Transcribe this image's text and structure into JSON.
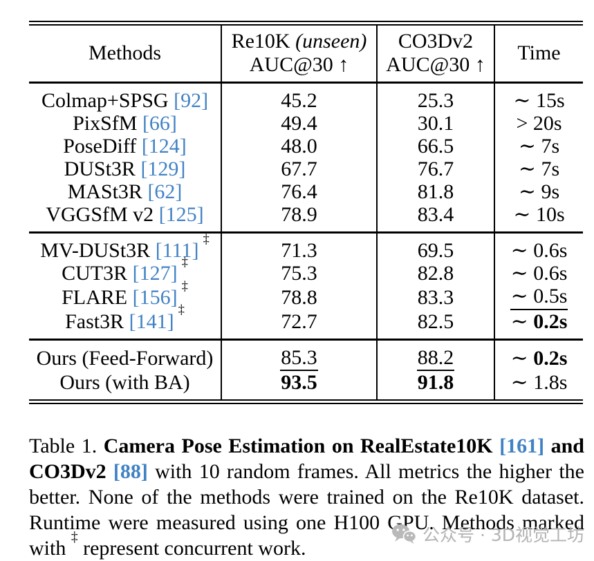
{
  "colors": {
    "citation_blue": "#4182C4",
    "watermark_gray": "#b3b3b3",
    "rule_black": "#000000"
  },
  "table": {
    "concurrent_marker": "‡",
    "header": {
      "methods": "Methods",
      "re10k_line1": "Re10K",
      "re10k_line1_italic": "(unseen)",
      "re10k_line2": "AUC@30 ↑",
      "co3d_line1": "CO3Dv2",
      "co3d_line2": "AUC@30 ↑",
      "time": "Time"
    },
    "groups": [
      {
        "rows": [
          {
            "method": "Colmap+SPSG",
            "cite": "[92]",
            "concurrent": false,
            "re10k": "45.2",
            "re10k_style": "",
            "co3d": "25.3",
            "co3d_style": "",
            "time_rel": "∼",
            "time_val": "15s",
            "time_style": ""
          },
          {
            "method": "PixSfM",
            "cite": "[66]",
            "concurrent": false,
            "re10k": "49.4",
            "re10k_style": "",
            "co3d": "30.1",
            "co3d_style": "",
            "time_rel": ">",
            "time_val": "20s",
            "time_style": ""
          },
          {
            "method": "PoseDiff",
            "cite": "[124]",
            "concurrent": false,
            "re10k": "48.0",
            "re10k_style": "",
            "co3d": "66.5",
            "co3d_style": "",
            "time_rel": "∼",
            "time_val": "7s",
            "time_style": ""
          },
          {
            "method": "DUSt3R",
            "cite": "[129]",
            "concurrent": false,
            "re10k": "67.7",
            "re10k_style": "",
            "co3d": "76.7",
            "co3d_style": "",
            "time_rel": "∼",
            "time_val": "7s",
            "time_style": ""
          },
          {
            "method": "MASt3R",
            "cite": "[62]",
            "concurrent": false,
            "re10k": "76.4",
            "re10k_style": "",
            "co3d": "81.8",
            "co3d_style": "",
            "time_rel": "∼",
            "time_val": "9s",
            "time_style": ""
          },
          {
            "method": "VGGSfM v2",
            "cite": "[125]",
            "concurrent": false,
            "re10k": "78.9",
            "re10k_style": "",
            "co3d": "83.4",
            "co3d_style": "",
            "time_rel": "∼",
            "time_val": "10s",
            "time_style": ""
          }
        ]
      },
      {
        "rows": [
          {
            "method": "MV-DUSt3R",
            "cite": "[111]",
            "concurrent": true,
            "re10k": "71.3",
            "re10k_style": "",
            "co3d": "69.5",
            "co3d_style": "",
            "time_rel": "∼",
            "time_val": "0.6s",
            "time_style": ""
          },
          {
            "method": "CUT3R",
            "cite": "[127]",
            "concurrent": true,
            "re10k": "75.3",
            "re10k_style": "",
            "co3d": "82.8",
            "co3d_style": "",
            "time_rel": "∼",
            "time_val": "0.6s",
            "time_style": ""
          },
          {
            "method": "FLARE",
            "cite": "[156]",
            "concurrent": true,
            "re10k": "78.8",
            "re10k_style": "",
            "co3d": "83.3",
            "co3d_style": "",
            "time_rel": "∼",
            "time_val": "0.5s",
            "time_style": "u"
          },
          {
            "method": "Fast3R",
            "cite": "[141]",
            "concurrent": true,
            "re10k": "72.7",
            "re10k_style": "",
            "co3d": "82.5",
            "co3d_style": "",
            "time_rel": "∼",
            "time_val": "0.2s",
            "time_style": "b"
          }
        ]
      },
      {
        "rows": [
          {
            "method": "Ours (Feed-Forward)",
            "cite": "",
            "concurrent": false,
            "re10k": "85.3",
            "re10k_style": "u",
            "co3d": "88.2",
            "co3d_style": "u",
            "time_rel": "∼",
            "time_val": "0.2s",
            "time_style": "b"
          },
          {
            "method": "Ours (with BA)",
            "cite": "",
            "concurrent": false,
            "re10k": "93.5",
            "re10k_style": "b",
            "co3d": "91.8",
            "co3d_style": "b",
            "time_rel": "∼",
            "time_val": "1.8s",
            "time_style": ""
          }
        ]
      }
    ]
  },
  "caption": {
    "segments": [
      {
        "text": "Table 1. ",
        "style": ""
      },
      {
        "text": "Camera Pose Estimation on RealEstate10K ",
        "style": "b"
      },
      {
        "text": "[161]",
        "style": "b cite"
      },
      {
        "text": " and CO3Dv2 ",
        "style": "b"
      },
      {
        "text": "[88]",
        "style": "b cite"
      },
      {
        "text": " with 10 random frames. All metrics the higher the better. None of the methods were trained on the Re10K dataset. Runtime were measured using one H100 GPU. Methods marked with ",
        "style": ""
      },
      {
        "text": "‡",
        "style": "sup"
      },
      {
        "text": " represent concurrent work.",
        "style": ""
      }
    ]
  },
  "watermark": {
    "text": "公众号 · 3D视觉工坊"
  }
}
